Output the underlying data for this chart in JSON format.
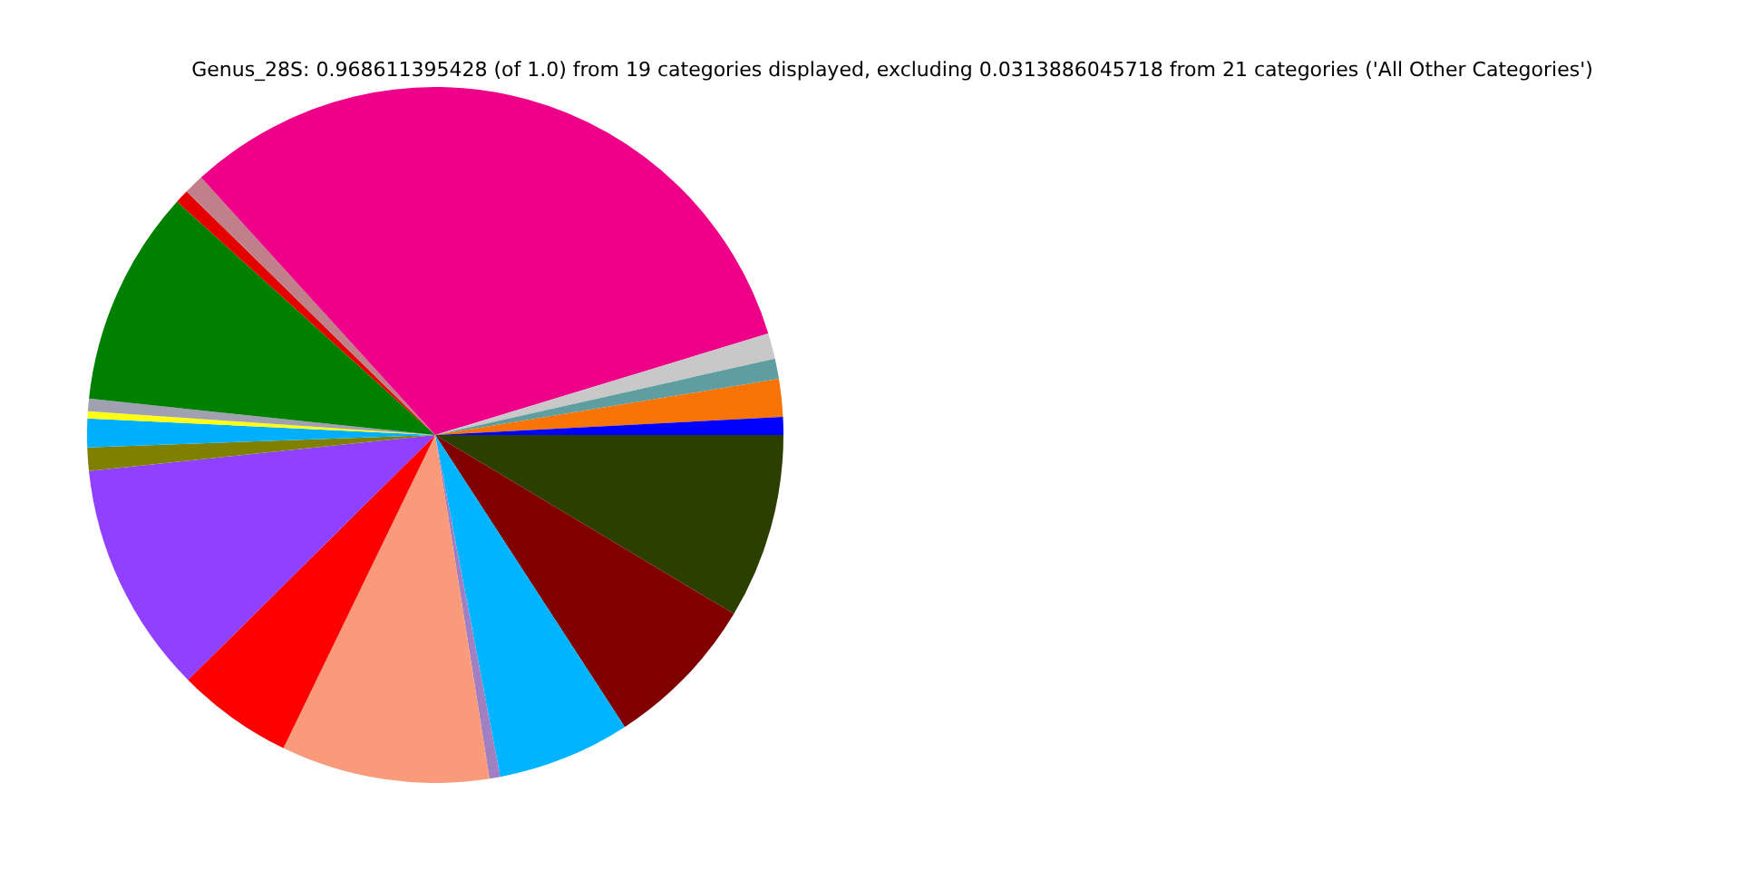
{
  "chart_data": {
    "type": "pie",
    "title": "Genus_28S: 0.968611395428 (of 1.0) from 19 categories displayed, excluding 0.0313886045718 from 21 categories ('All Other Categories')",
    "categories": [
      null,
      null,
      null,
      null,
      null,
      null,
      null,
      null,
      null,
      null,
      null,
      null,
      null,
      null,
      null,
      null,
      null,
      null,
      null
    ],
    "values": [
      0.83,
      1.75,
      0.94,
      1.19,
      32.03,
      0.92,
      0.64,
      10.03,
      0.58,
      0.33,
      1.33,
      1.08,
      10.78,
      5.39,
      9.67,
      0.5,
      6.17,
      7.25,
      8.59
    ],
    "colors": [
      "#0000ff",
      "#f97306",
      "#5f9ea0",
      "#c8c8c8",
      "#ee0088",
      "#c0808a",
      "#e50000",
      "#008000",
      "#a0a0b0",
      "#ffff14",
      "#00b0ff",
      "#808000",
      "#9040ff",
      "#ff0000",
      "#f99a7a",
      "#a080c0",
      "#00b4ff",
      "#800000",
      "#2b4000"
    ],
    "legend": false
  }
}
